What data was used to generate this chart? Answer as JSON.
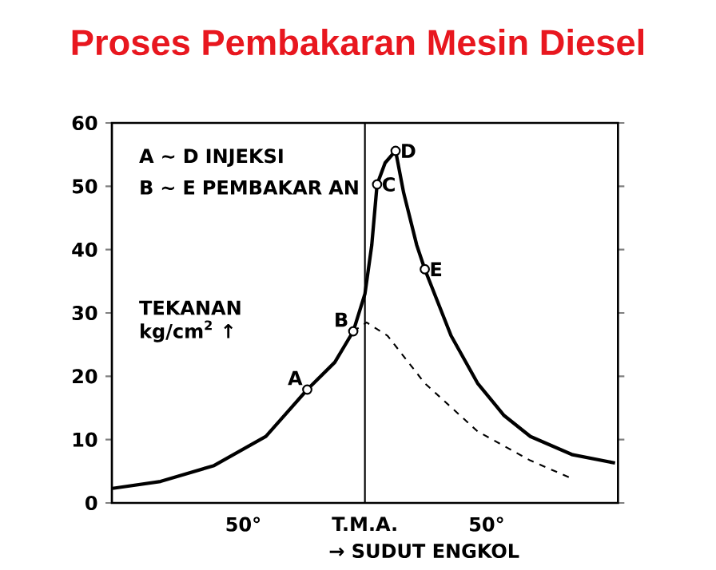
{
  "chart_data": {
    "type": "line",
    "title": "Proses Pembakaran Mesin Diesel",
    "xlabel": "→ SUDUT ENGKOL",
    "ylabel": "TEKANAN kg/cm$^{2}$ ↑",
    "xlim": [
      -104,
      104
    ],
    "xticks": [
      {
        "value": -50,
        "label": "50°"
      },
      {
        "value": 0,
        "label": "T.M.A."
      },
      {
        "value": 50,
        "label": "50°"
      }
    ],
    "ylim": [
      0,
      60
    ],
    "yticks": [
      0,
      10,
      20,
      30,
      40,
      50,
      60
    ],
    "grid": false,
    "series": [
      {
        "color": "#000000",
        "line_style": "solid",
        "x": [
          -103.7,
          -84,
          -62,
          -40.7,
          -23.7,
          -12.4,
          -4.8,
          0,
          2.8,
          5,
          8.3,
          12.6,
          15.9,
          21.3,
          24.6,
          35.4,
          46.3,
          57.2,
          68,
          85.4,
          102.8
        ],
        "values": [
          2.3,
          3.4,
          5.9,
          10.5,
          17.9,
          22.2,
          27.1,
          33,
          40.7,
          50.3,
          53.7,
          55.6,
          49,
          40.7,
          36.9,
          26.4,
          18.9,
          13.8,
          10.5,
          7.6,
          6.3
        ]
      },
      {
        "color": "#000000",
        "line_style": "dashed",
        "x": [
          -4.8,
          0.7,
          9.3,
          24.6,
          46.3,
          68,
          85.4
        ],
        "values": [
          27.1,
          28.5,
          26.4,
          18.9,
          11.3,
          6.7,
          3.8
        ]
      },
      {
        "type": "scatter",
        "color": "#000000",
        "marker": "circle",
        "x": [
          -23.7,
          -4.8,
          5,
          12.6,
          24.6
        ],
        "values": [
          17.9,
          27.1,
          50.3,
          55.6,
          36.9
        ]
      }
    ],
    "ref_lines": [
      {
        "axis": "x",
        "value": 0
      }
    ],
    "annotations": [
      "A ∼ D INJEKSI",
      "B ∼ E PEMBAKAR AN",
      {
        "text": "A",
        "x": -23.7,
        "y": 17.9
      },
      {
        "text": "B",
        "x": -4.8,
        "y": 27.1
      },
      {
        "text": "C",
        "x": 5,
        "y": 50.3
      },
      {
        "text": "D",
        "x": 12.6,
        "y": 55.6
      },
      {
        "text": "E",
        "x": 24.6,
        "y": 36.9
      }
    ]
  }
}
